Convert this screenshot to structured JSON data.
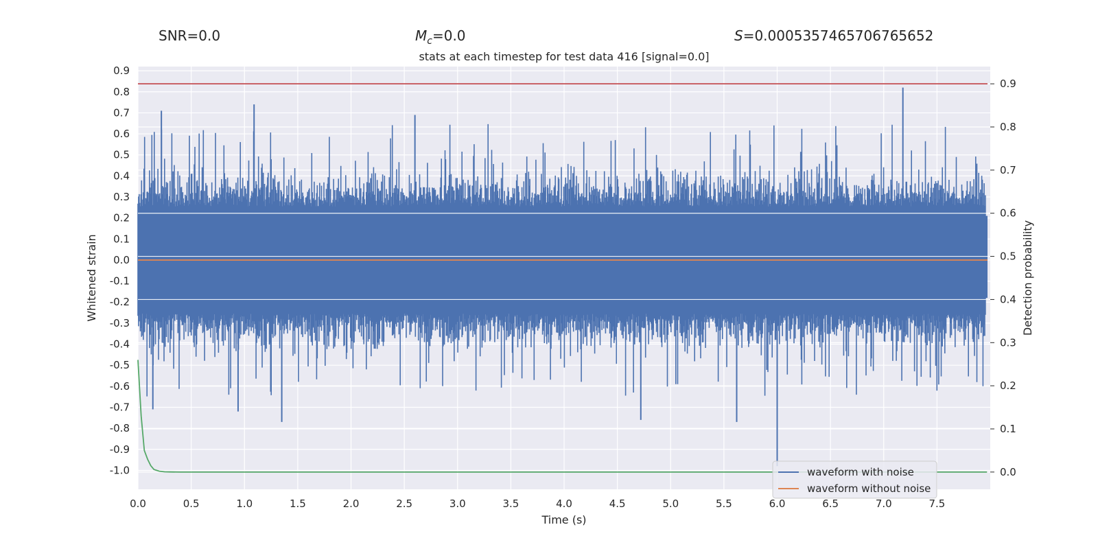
{
  "header": {
    "snr_text": "SNR=0.0",
    "mc_symbol": "M",
    "mc_sub": "c",
    "mc_value": "=0.0",
    "s_symbol": "S",
    "s_value": "=0.0005357465706765652"
  },
  "colors": {
    "background": "#eaeaf2",
    "grid": "#ffffff",
    "noisy": "#4c72b0",
    "clean": "#dd8452",
    "prob": "#55a868",
    "threshold": "#c44e52"
  },
  "chart_data": {
    "type": "line",
    "title": "stats at each timestep for test data 416 [signal=0.0]",
    "xlabel": "Time (s)",
    "ylabel": "Whitened strain",
    "ylabel_right": "Detection probability",
    "xlim": [
      0.0,
      8.0
    ],
    "ylim": [
      -1.09,
      0.92
    ],
    "ylim_right": [
      -0.04,
      0.94
    ],
    "xticks": [
      "0.0",
      "0.5",
      "1.0",
      "1.5",
      "2.0",
      "2.5",
      "3.0",
      "3.5",
      "4.0",
      "4.5",
      "5.0",
      "5.5",
      "6.0",
      "6.5",
      "7.0",
      "7.5"
    ],
    "yticks": [
      "0.9",
      "0.8",
      "0.7",
      "0.6",
      "0.5",
      "0.4",
      "0.3",
      "0.2",
      "0.1",
      "0.0",
      "-0.1",
      "-0.2",
      "-0.3",
      "-0.4",
      "-0.5",
      "-0.6",
      "-0.7",
      "-0.8",
      "-0.9",
      "-1.0"
    ],
    "yticks_right": [
      "0.9",
      "0.8",
      "0.7",
      "0.6",
      "0.5",
      "0.4",
      "0.3",
      "0.2",
      "0.1",
      "0.0"
    ],
    "grid": true,
    "legend": {
      "position": "lower-right",
      "entries": [
        "waveform with noise",
        "waveform without noise"
      ]
    },
    "series": [
      {
        "name": "waveform with noise",
        "axis": "left",
        "style": "dense-noise",
        "min_envelope": -0.98,
        "max_envelope": 0.82,
        "typical_low": -0.3,
        "typical_high": 0.3,
        "notable_peaks": [
          {
            "t": 0.22,
            "v": 0.71
          },
          {
            "t": 1.09,
            "v": 0.74
          },
          {
            "t": 2.6,
            "v": 0.69
          },
          {
            "t": 7.18,
            "v": 0.82
          },
          {
            "t": 1.35,
            "v": -0.77
          },
          {
            "t": 4.72,
            "v": -0.76
          },
          {
            "t": 5.62,
            "v": -0.77
          },
          {
            "t": 6.0,
            "v": -0.98
          },
          {
            "t": 0.94,
            "v": -0.72
          },
          {
            "t": 0.14,
            "v": -0.71
          }
        ]
      },
      {
        "name": "waveform without noise",
        "axis": "left",
        "x": [
          0.0,
          8.0
        ],
        "values": [
          0.0,
          0.0
        ]
      },
      {
        "name": "detection probability",
        "axis": "right",
        "x": [
          0.0,
          0.03,
          0.06,
          0.09,
          0.12,
          0.15,
          0.2,
          0.25,
          0.3,
          0.4,
          8.0
        ],
        "values": [
          0.26,
          0.13,
          0.05,
          0.03,
          0.015,
          0.006,
          0.002,
          0.0005,
          0.0002,
          0.0,
          0.0
        ]
      },
      {
        "name": "detection threshold",
        "axis": "right",
        "x": [
          0.0,
          8.0
        ],
        "values": [
          0.9,
          0.9
        ]
      }
    ]
  }
}
